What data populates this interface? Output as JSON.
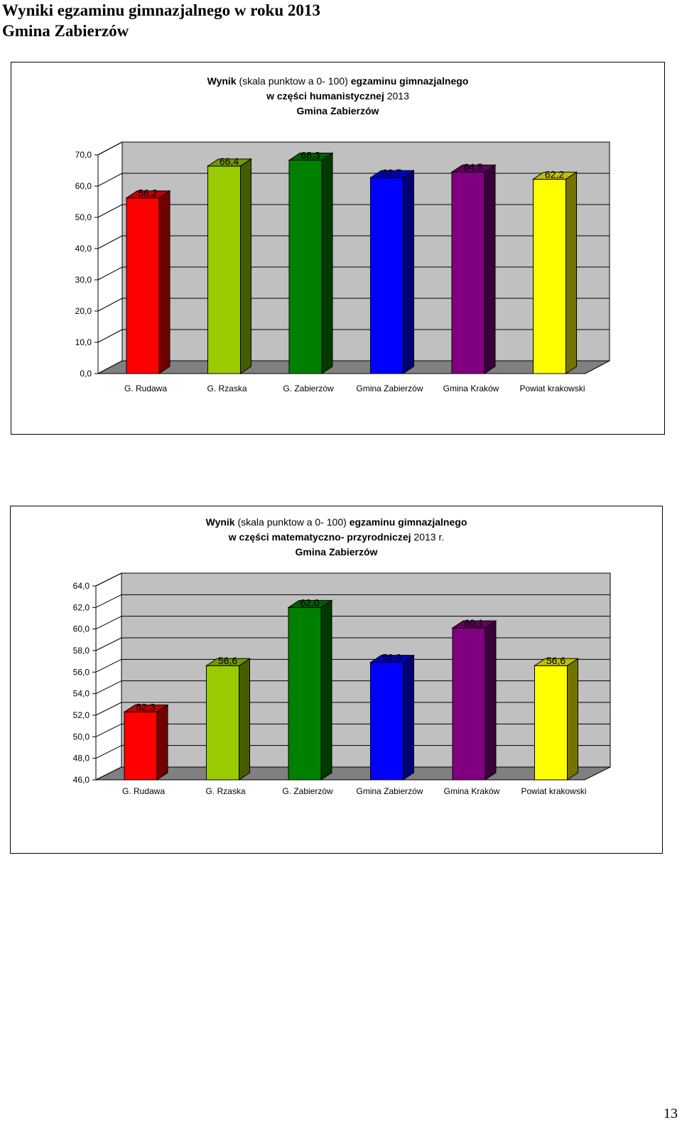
{
  "document": {
    "title_line1": "Wyniki egzaminu gimnazjalnego w roku 2013",
    "title_line2": "Gmina Zabierzów",
    "page_number": "13"
  },
  "colors": {
    "bars": [
      "#ff0000",
      "#99cc00",
      "#008000",
      "#0000ff",
      "#800080",
      "#ffff00"
    ],
    "wall": "#c0c0c0",
    "floor": "#808080"
  },
  "chart_data": [
    {
      "type": "bar",
      "title_segments": [
        [
          {
            "text": "Wynik",
            "bold": true
          },
          {
            "text": " (skala punktow a 0- 100) ",
            "bold": false
          },
          {
            "text": "egzaminu gimnazjalnego",
            "bold": true
          }
        ],
        [
          {
            "text": "w części humanistycznej",
            "bold": true
          },
          {
            "text": " 2013",
            "bold": false
          }
        ],
        [
          {
            "text": "Gmina Zabierzów",
            "bold": true
          }
        ]
      ],
      "categories": [
        "G. Rudawa",
        "G. Rzaska",
        "G. Zabierzów",
        "Gmina Zabierzów",
        "Gmina Kraków",
        "Powiat krakowski"
      ],
      "values": [
        56.2,
        66.4,
        68.3,
        62.7,
        64.5,
        62.2
      ],
      "value_labels": [
        "56,2",
        "66,4",
        "68,3",
        "62,7",
        "64,5",
        "62,2"
      ],
      "ylim": [
        0,
        70
      ],
      "yticks": [
        "0,0",
        "10,0",
        "20,0",
        "30,0",
        "40,0",
        "50,0",
        "60,0",
        "70,0"
      ],
      "grid": true,
      "legend": "none",
      "style": "3d"
    },
    {
      "type": "bar",
      "title_segments": [
        [
          {
            "text": "Wynik",
            "bold": true
          },
          {
            "text": " (skala punktow a 0- 100) ",
            "bold": false
          },
          {
            "text": "egzaminu gimnazjalnego",
            "bold": true
          }
        ],
        [
          {
            "text": "w części matematyczno- przyrodniczej",
            "bold": true
          },
          {
            "text": " 2013 r.",
            "bold": false
          }
        ],
        [
          {
            "text": "Gmina Zabierzów",
            "bold": true
          }
        ]
      ],
      "categories": [
        "G. Rudawa",
        "G. Rzaska",
        "G. Zabierzów",
        "Gmina Zabierzów",
        "Gmina Kraków",
        "Powiat krakowski"
      ],
      "values": [
        52.3,
        56.6,
        62.0,
        56.9,
        60.1,
        56.6
      ],
      "value_labels": [
        "52,3",
        "56,6",
        "62,0",
        "56,9",
        "60,1",
        "56,6"
      ],
      "ylim": [
        46,
        64
      ],
      "yticks": [
        "46,0",
        "48,0",
        "50,0",
        "52,0",
        "54,0",
        "56,0",
        "58,0",
        "60,0",
        "62,0",
        "64,0"
      ],
      "grid": true,
      "legend": "none",
      "style": "3d"
    }
  ]
}
